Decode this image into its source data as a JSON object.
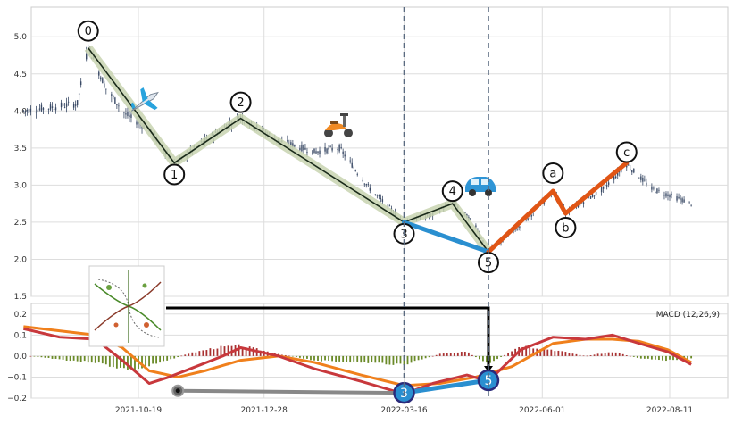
{
  "chart_data": [
    {
      "type": "candlestick",
      "panel": "price",
      "ylim": [
        1.5,
        5.4
      ],
      "yticks": [
        "1.5",
        "2.0",
        "2.5",
        "3.0",
        "3.5",
        "4.0",
        "4.5",
        "5.0"
      ],
      "grid": true,
      "price_series": [
        {
          "date": "2021-08-16",
          "price": 4.0
        },
        {
          "date": "2021-09-01",
          "price": 4.05
        },
        {
          "date": "2021-09-15",
          "price": 4.1
        },
        {
          "date": "2021-09-21",
          "price": 4.87
        },
        {
          "date": "2021-10-01",
          "price": 4.3
        },
        {
          "date": "2021-10-12",
          "price": 3.95
        },
        {
          "date": "2021-10-25",
          "price": 3.75
        },
        {
          "date": "2021-11-08",
          "price": 3.28
        },
        {
          "date": "2021-11-25",
          "price": 3.6
        },
        {
          "date": "2021-12-15",
          "price": 3.92
        },
        {
          "date": "2022-01-05",
          "price": 3.6
        },
        {
          "date": "2022-01-25",
          "price": 3.45
        },
        {
          "date": "2022-02-08",
          "price": 3.5
        },
        {
          "date": "2022-02-25",
          "price": 2.95
        },
        {
          "date": "2022-03-16",
          "price": 2.5
        },
        {
          "date": "2022-04-01",
          "price": 2.6
        },
        {
          "date": "2022-04-12",
          "price": 2.78
        },
        {
          "date": "2022-04-25",
          "price": 2.45
        },
        {
          "date": "2022-05-02",
          "price": 2.1
        },
        {
          "date": "2022-05-20",
          "price": 2.45
        },
        {
          "date": "2022-06-07",
          "price": 2.92
        },
        {
          "date": "2022-06-14",
          "price": 2.62
        },
        {
          "date": "2022-07-05",
          "price": 2.95
        },
        {
          "date": "2022-07-18",
          "price": 3.28
        },
        {
          "date": "2022-08-01",
          "price": 2.95
        },
        {
          "date": "2022-08-18",
          "price": 2.8
        },
        {
          "date": "2022-08-23",
          "price": 2.75
        }
      ],
      "wave_points": [
        {
          "label": "0",
          "date": "2021-09-21",
          "price": 4.85
        },
        {
          "label": "1",
          "date": "2021-11-08",
          "price": 3.3
        },
        {
          "label": "2",
          "date": "2021-12-15",
          "price": 3.9
        },
        {
          "label": "3",
          "date": "2022-03-16",
          "price": 2.5
        },
        {
          "label": "4",
          "date": "2022-04-12",
          "price": 2.75
        },
        {
          "label": "5",
          "date": "2022-05-02",
          "price": 2.1
        },
        {
          "label": "a",
          "date": "2022-06-07",
          "price": 2.92
        },
        {
          "label": "b",
          "date": "2022-06-14",
          "price": 2.62
        },
        {
          "label": "c",
          "date": "2022-07-18",
          "price": 3.3
        }
      ],
      "vertical_markers": [
        "2022-03-16",
        "2022-05-02"
      ],
      "colors": {
        "candles": "#3a4a66",
        "impulse_wave": "#1a2a1a",
        "impulse_band": "#c8d4b0",
        "correction_wave": "#e05515",
        "blue_segment": "#2a8fd0",
        "marker_line": "#5a6a80"
      }
    },
    {
      "type": "macd",
      "panel": "indicator",
      "legend": "MACD (12,26,9)",
      "legend_position": "top-right",
      "ylim": [
        -0.2,
        0.25
      ],
      "yticks": [
        "−0.2",
        "−0.1",
        "0.0",
        "0.1",
        "0.2"
      ],
      "xticks": [
        "2021-10-19",
        "2021-12-28",
        "2022-03-16",
        "2022-06-01",
        "2022-08-11"
      ],
      "macd_line": [
        {
          "date": "2021-08-16",
          "value": 0.13
        },
        {
          "date": "2021-09-05",
          "value": 0.09
        },
        {
          "date": "2021-09-25",
          "value": 0.08
        },
        {
          "date": "2021-10-10",
          "value": -0.02
        },
        {
          "date": "2021-10-25",
          "value": -0.13
        },
        {
          "date": "2021-11-05",
          "value": -0.1
        },
        {
          "date": "2021-11-20",
          "value": -0.05
        },
        {
          "date": "2021-12-05",
          "value": 0.0
        },
        {
          "date": "2021-12-15",
          "value": 0.04
        },
        {
          "date": "2022-01-05",
          "value": 0.0
        },
        {
          "date": "2022-01-25",
          "value": -0.06
        },
        {
          "date": "2022-02-20",
          "value": -0.12
        },
        {
          "date": "2022-03-16",
          "value": -0.18
        },
        {
          "date": "2022-04-01",
          "value": -0.13
        },
        {
          "date": "2022-04-20",
          "value": -0.09
        },
        {
          "date": "2022-05-02",
          "value": -0.12
        },
        {
          "date": "2022-05-20",
          "value": 0.03
        },
        {
          "date": "2022-06-07",
          "value": 0.09
        },
        {
          "date": "2022-06-25",
          "value": 0.08
        },
        {
          "date": "2022-07-10",
          "value": 0.1
        },
        {
          "date": "2022-07-25",
          "value": 0.06
        },
        {
          "date": "2022-08-10",
          "value": 0.02
        },
        {
          "date": "2022-08-23",
          "value": -0.04
        }
      ],
      "signal_line": [
        {
          "date": "2021-08-16",
          "value": 0.14
        },
        {
          "date": "2021-09-05",
          "value": 0.12
        },
        {
          "date": "2021-09-25",
          "value": 0.1
        },
        {
          "date": "2021-10-10",
          "value": 0.04
        },
        {
          "date": "2021-10-25",
          "value": -0.07
        },
        {
          "date": "2021-11-10",
          "value": -0.1
        },
        {
          "date": "2021-11-25",
          "value": -0.07
        },
        {
          "date": "2021-12-15",
          "value": -0.02
        },
        {
          "date": "2022-01-05",
          "value": 0.0
        },
        {
          "date": "2022-01-25",
          "value": -0.03
        },
        {
          "date": "2022-02-20",
          "value": -0.09
        },
        {
          "date": "2022-03-16",
          "value": -0.14
        },
        {
          "date": "2022-04-05",
          "value": -0.13
        },
        {
          "date": "2022-04-25",
          "value": -0.1
        },
        {
          "date": "2022-05-15",
          "value": -0.05
        },
        {
          "date": "2022-06-07",
          "value": 0.06
        },
        {
          "date": "2022-06-25",
          "value": 0.08
        },
        {
          "date": "2022-07-10",
          "value": 0.08
        },
        {
          "date": "2022-07-25",
          "value": 0.07
        },
        {
          "date": "2022-08-10",
          "value": 0.03
        },
        {
          "date": "2022-08-23",
          "value": -0.03
        }
      ],
      "histogram": [
        {
          "date": "2021-08-20",
          "value": 0.0
        },
        {
          "date": "2021-09-10",
          "value": -0.02
        },
        {
          "date": "2021-09-25",
          "value": -0.03
        },
        {
          "date": "2021-10-10",
          "value": -0.06
        },
        {
          "date": "2021-10-20",
          "value": -0.06
        },
        {
          "date": "2021-11-01",
          "value": -0.03
        },
        {
          "date": "2021-11-15",
          "value": 0.01
        },
        {
          "date": "2021-12-01",
          "value": 0.04
        },
        {
          "date": "2021-12-15",
          "value": 0.05
        },
        {
          "date": "2022-01-05",
          "value": 0.01
        },
        {
          "date": "2022-01-25",
          "value": -0.02
        },
        {
          "date": "2022-02-20",
          "value": -0.03
        },
        {
          "date": "2022-03-16",
          "value": -0.04
        },
        {
          "date": "2022-04-05",
          "value": 0.01
        },
        {
          "date": "2022-04-20",
          "value": 0.02
        },
        {
          "date": "2022-05-02",
          "value": -0.04
        },
        {
          "date": "2022-05-20",
          "value": 0.05
        },
        {
          "date": "2022-06-07",
          "value": 0.03
        },
        {
          "date": "2022-06-25",
          "value": 0.0
        },
        {
          "date": "2022-07-10",
          "value": 0.02
        },
        {
          "date": "2022-07-25",
          "value": -0.01
        },
        {
          "date": "2022-08-10",
          "value": -0.02
        },
        {
          "date": "2022-08-23",
          "value": -0.01
        }
      ],
      "gray_segment": [
        {
          "date": "2021-11-10",
          "value": -0.165
        },
        {
          "date": "2022-03-16",
          "value": -0.175
        }
      ],
      "blue_segment_points": [
        {
          "label": "3",
          "date": "2022-03-16",
          "value": -0.175
        },
        {
          "label": "5",
          "date": "2022-05-02",
          "value": -0.115
        }
      ],
      "colors": {
        "macd": "#c8383c",
        "signal": "#f0801c",
        "hist_pos": "#a83030",
        "hist_neg": "#6a8a28",
        "gray_segment": "#888888",
        "blue_segment": "#2a8fd0",
        "black_connector": "#000000"
      }
    }
  ]
}
